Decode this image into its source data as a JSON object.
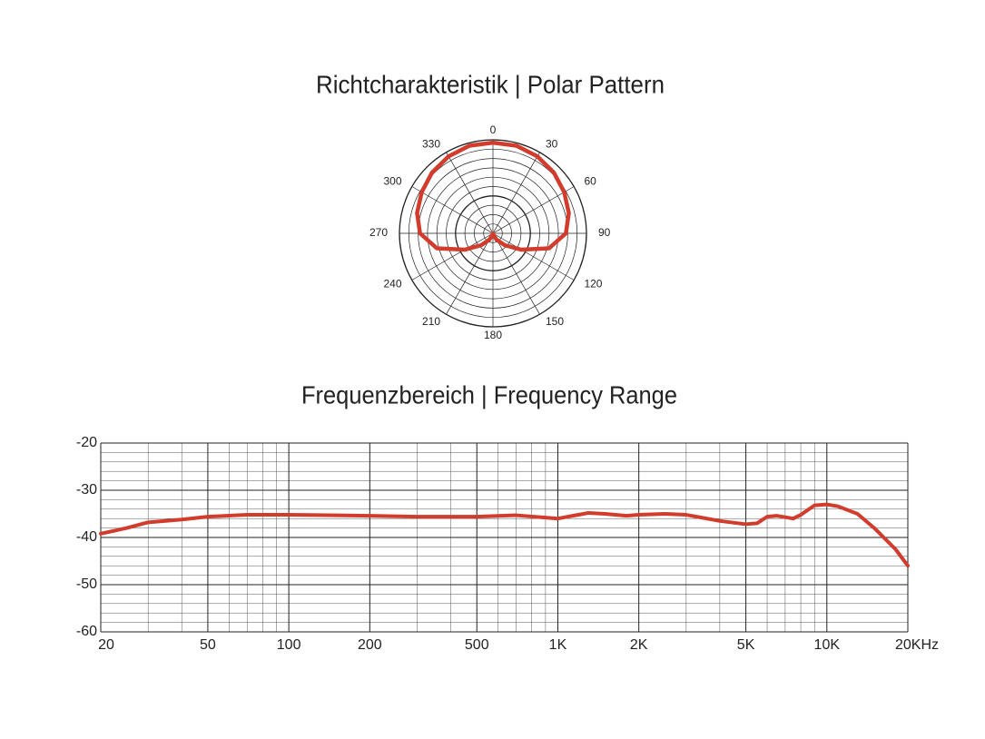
{
  "chart_data": [
    {
      "type": "polar",
      "title": "Richtcharakteristik | Polar Pattern",
      "theta": [
        0,
        15,
        30,
        45,
        60,
        75,
        90,
        105,
        120,
        135,
        150,
        165,
        180,
        195,
        210,
        225,
        240,
        255,
        270,
        285,
        300,
        315,
        330,
        345
      ],
      "r": [
        0.97,
        0.97,
        0.95,
        0.92,
        0.88,
        0.84,
        0.78,
        0.62,
        0.35,
        0.18,
        0.08,
        0.02,
        0,
        0.02,
        0.08,
        0.18,
        0.35,
        0.62,
        0.78,
        0.84,
        0.88,
        0.92,
        0.95,
        0.97
      ],
      "color": "#d13c2c",
      "rlim": [
        0,
        1
      ],
      "rticks": [
        0.1,
        0.2,
        0.3,
        0.4,
        0.5,
        0.6,
        0.7,
        0.8,
        0.9,
        1
      ],
      "thetaticks": [
        0,
        30,
        60,
        90,
        120,
        150,
        180,
        210,
        240,
        270,
        300,
        330
      ]
    },
    {
      "type": "line",
      "title": "Frequenzbereich | Frequency Range",
      "x": [
        20,
        25,
        30,
        40,
        50,
        70,
        100,
        200,
        300,
        500,
        700,
        900,
        1000,
        1300,
        1500,
        1800,
        2000,
        2500,
        3000,
        4000,
        5000,
        5500,
        6000,
        6500,
        7500,
        8000,
        9000,
        10000,
        11000,
        13000,
        15000,
        18000,
        20000
      ],
      "values": [
        -39.2,
        -38,
        -36.8,
        -36.2,
        -35.6,
        -35.2,
        -35.2,
        -35.4,
        -35.6,
        -35.6,
        -35.3,
        -35.8,
        -36,
        -34.8,
        -35,
        -35.4,
        -35.2,
        -35,
        -35.2,
        -36.5,
        -37.2,
        -37,
        -35.6,
        -35.4,
        -36,
        -35.2,
        -33.2,
        -33,
        -33.4,
        -35,
        -38,
        -42.5,
        -46
      ],
      "color": "#d13c2c",
      "xscale": "log",
      "xlim": [
        20,
        20000
      ],
      "ylim": [
        -60,
        -20
      ],
      "xticks": [
        20,
        50,
        100,
        200,
        500,
        {
          "value": 1000,
          "label": "1K"
        },
        {
          "value": 2000,
          "label": "2K"
        },
        {
          "value": 5000,
          "label": "5K"
        },
        {
          "value": 10000,
          "label": "10K"
        },
        {
          "value": 20000,
          "label": "20KHz"
        }
      ],
      "yticks": [
        -20,
        -30,
        -40,
        -50,
        -60
      ],
      "x_minor_ticks": [
        30,
        40,
        60,
        70,
        80,
        90,
        300,
        400,
        600,
        700,
        800,
        900,
        3000,
        4000,
        6000,
        7000,
        8000,
        9000
      ],
      "y_minor_ticks": [
        -22,
        -24,
        -26,
        -28,
        -32,
        -34,
        -36,
        -38,
        -42,
        -44,
        -46,
        -48,
        -52,
        -54,
        -56,
        -58
      ],
      "grid": true
    }
  ]
}
